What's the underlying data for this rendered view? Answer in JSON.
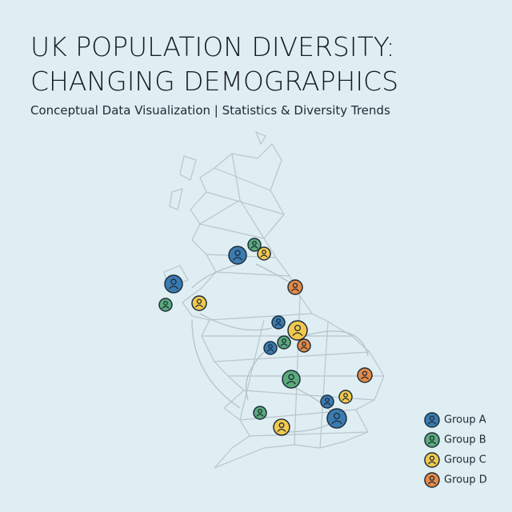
{
  "header": {
    "title_lines": [
      "UK POPULATION DIVERSITY:",
      "CHANGING DEMOGRAPHICS"
    ],
    "subtitle": "Conceptual Data Visualization | Statistics & Diversity Trends"
  },
  "legend": {
    "items": [
      {
        "name": "Group A",
        "color": "#3a7bb0"
      },
      {
        "name": "Group B",
        "color": "#5aab7a"
      },
      {
        "name": "Group C",
        "color": "#f2c94c"
      },
      {
        "name": "Group D",
        "color": "#e58a45"
      }
    ]
  }
}
